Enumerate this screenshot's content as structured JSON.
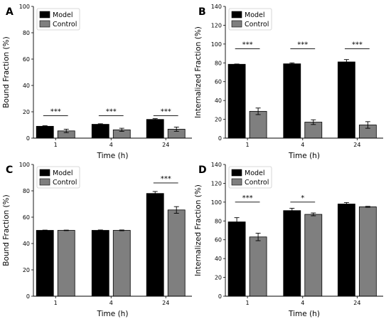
{
  "colors": {
    "model": "#000000",
    "control": "#7f7f7f",
    "axis": "#000000"
  },
  "chart_data": [
    {
      "letter": "A",
      "type": "bar",
      "categories": [
        "1",
        "4",
        "24"
      ],
      "xlabel": "Time (h)",
      "ylabel": "Bound Fraction (%)",
      "ylim": [
        0,
        100
      ],
      "yticks": [
        0,
        20,
        40,
        60,
        80,
        100
      ],
      "legend": "top-left",
      "series": [
        {
          "name": "Model",
          "values": [
            9,
            10.5,
            14.2
          ],
          "errors": [
            0.4,
            0.4,
            0.6
          ]
        },
        {
          "name": "Control",
          "values": [
            5.5,
            6.3,
            6.8
          ],
          "errors": [
            1.3,
            1.2,
            1.6
          ]
        }
      ],
      "significance": [
        {
          "category_index": 0,
          "label": "***",
          "y": 17
        },
        {
          "category_index": 1,
          "label": "***",
          "y": 17
        },
        {
          "category_index": 2,
          "label": "***",
          "y": 17
        }
      ]
    },
    {
      "letter": "B",
      "type": "bar",
      "categories": [
        "1",
        "4",
        "24"
      ],
      "xlabel": "Time (h)",
      "ylabel": "Internalized Fraction (%)",
      "ylim": [
        0,
        140
      ],
      "yticks": [
        0,
        20,
        40,
        60,
        80,
        100,
        120,
        140
      ],
      "legend": "top-left",
      "series": [
        {
          "name": "Model",
          "values": [
            78.5,
            79,
            81
          ],
          "errors": [
            0.3,
            1,
            2.5
          ]
        },
        {
          "name": "Control",
          "values": [
            28.5,
            17,
            14
          ],
          "errors": [
            3.5,
            2.5,
            3.5
          ]
        }
      ],
      "significance": [
        {
          "category_index": 0,
          "label": "***",
          "y": 95
        },
        {
          "category_index": 1,
          "label": "***",
          "y": 95
        },
        {
          "category_index": 2,
          "label": "***",
          "y": 95
        }
      ]
    },
    {
      "letter": "C",
      "type": "bar",
      "categories": [
        "1",
        "4",
        "24"
      ],
      "xlabel": "Time (h)",
      "ylabel": "Bound Fraction (%)",
      "ylim": [
        0,
        100
      ],
      "yticks": [
        0,
        20,
        40,
        60,
        80,
        100
      ],
      "legend": "top-left",
      "series": [
        {
          "name": "Model",
          "values": [
            50,
            50,
            78
          ],
          "errors": [
            0.2,
            0.3,
            1.5
          ]
        },
        {
          "name": "Control",
          "values": [
            50,
            50,
            65.5
          ],
          "errors": [
            0.2,
            0.3,
            2.5
          ]
        }
      ],
      "significance": [
        {
          "category_index": 2,
          "label": "***",
          "y": 86
        }
      ]
    },
    {
      "letter": "D",
      "type": "bar",
      "categories": [
        "1",
        "4",
        "24"
      ],
      "xlabel": "Time (h)",
      "ylabel": "Internalized Fraction (%)",
      "ylim": [
        0,
        140
      ],
      "yticks": [
        0,
        20,
        40,
        60,
        80,
        100,
        120,
        140
      ],
      "legend": "top-left",
      "series": [
        {
          "name": "Model",
          "values": [
            79,
            91,
            98
          ],
          "errors": [
            4.5,
            2.5,
            1.5
          ]
        },
        {
          "name": "Control",
          "values": [
            63,
            87,
            95
          ],
          "errors": [
            4,
            1.5,
            0.5
          ]
        }
      ],
      "significance": [
        {
          "category_index": 0,
          "label": "***",
          "y": 100
        },
        {
          "category_index": 1,
          "label": "*",
          "y": 100
        }
      ]
    }
  ]
}
